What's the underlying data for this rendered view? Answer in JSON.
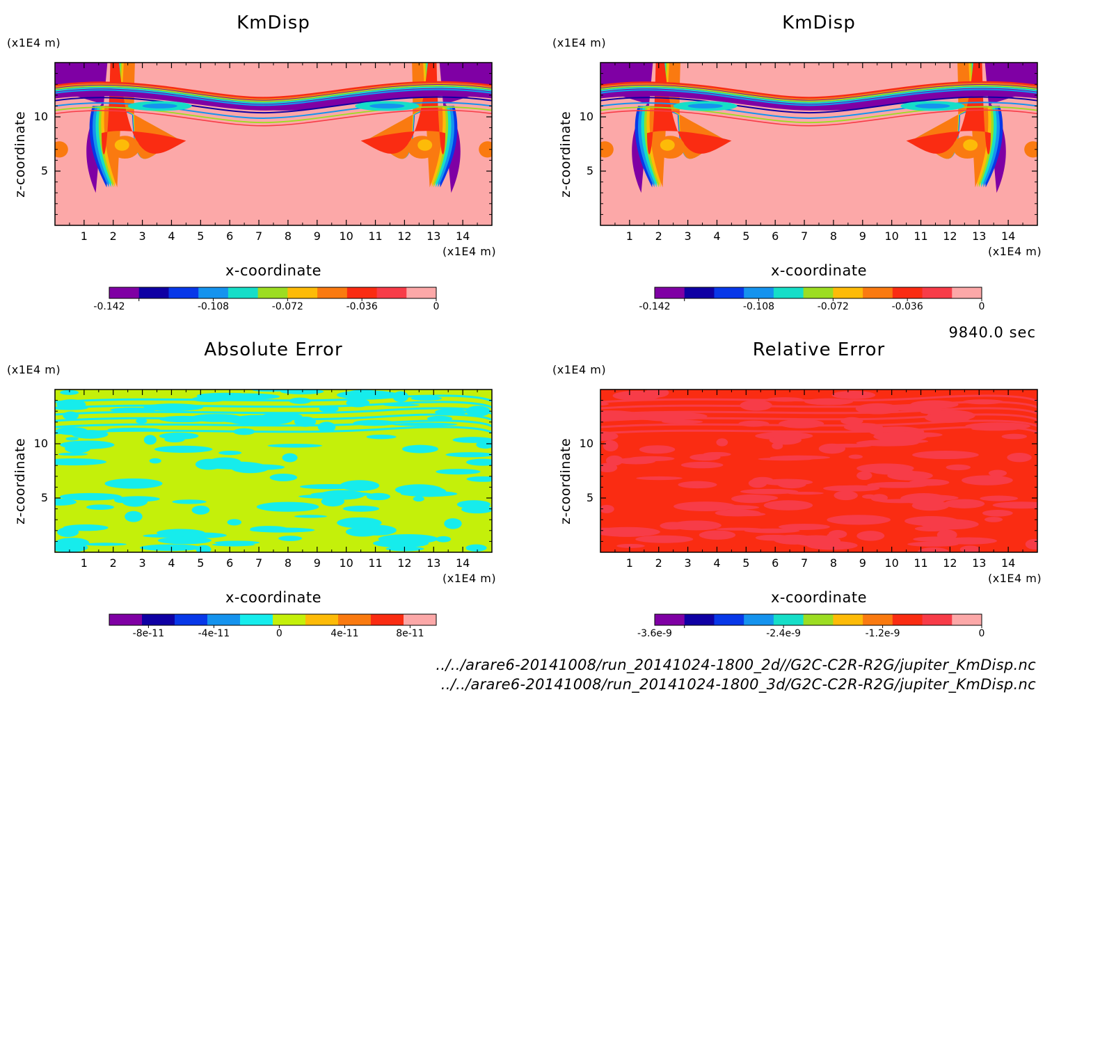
{
  "figure": {
    "timestamp": "9840.0 sec",
    "files": [
      "../../arare6-20141008/run_20141024-1800_2d//G2C-C2R-R2G/jupiter_KmDisp.nc",
      "../../arare6-20141008/run_20141024-1800_3d/G2C-C2R-R2G/jupiter_KmDisp.nc"
    ]
  },
  "chart_data": [
    {
      "type": "heatmap",
      "title": "KmDisp",
      "xlabel": "x-coordinate",
      "ylabel": "z-coordinate",
      "x_unit": "(x1E4 m)",
      "y_unit": "(x1E4 m)",
      "xlim": [
        0,
        15
      ],
      "ylim": [
        0,
        15
      ],
      "xticks": [
        "1",
        "2",
        "3",
        "4",
        "5",
        "6",
        "7",
        "8",
        "9",
        "10",
        "11",
        "12",
        "13",
        "14"
      ],
      "yticks": [
        "5",
        "10"
      ],
      "colorbar": {
        "colors": [
          "#7f00a4",
          "#0f00a3",
          "#0838e8",
          "#1593ee",
          "#16dec8",
          "#9cdd22",
          "#fdbb08",
          "#fa7a10",
          "#fa2c12",
          "#f73c48",
          "#fca8a8"
        ],
        "tick_labels": [
          "-0.142",
          "-0.108",
          "-0.072",
          "-0.036",
          "0"
        ]
      }
    },
    {
      "type": "heatmap",
      "title": "KmDisp",
      "xlabel": "x-coordinate",
      "ylabel": "z-coordinate",
      "x_unit": "(x1E4 m)",
      "y_unit": "(x1E4 m)",
      "xlim": [
        0,
        15
      ],
      "ylim": [
        0,
        15
      ],
      "xticks": [
        "1",
        "2",
        "3",
        "4",
        "5",
        "6",
        "7",
        "8",
        "9",
        "10",
        "11",
        "12",
        "13",
        "14"
      ],
      "yticks": [
        "5",
        "10"
      ],
      "colorbar": {
        "colors": [
          "#7f00a4",
          "#0f00a3",
          "#0838e8",
          "#1593ee",
          "#16dec8",
          "#9cdd22",
          "#fdbb08",
          "#fa7a10",
          "#fa2c12",
          "#f73c48",
          "#fca8a8"
        ],
        "tick_labels": [
          "-0.142",
          "-0.108",
          "-0.072",
          "-0.036",
          "0"
        ]
      }
    },
    {
      "type": "heatmap",
      "title": "Absolute Error",
      "xlabel": "x-coordinate",
      "ylabel": "z-coordinate",
      "x_unit": "(x1E4 m)",
      "y_unit": "(x1E4 m)",
      "xlim": [
        0,
        15
      ],
      "ylim": [
        0,
        15
      ],
      "xticks": [
        "1",
        "2",
        "3",
        "4",
        "5",
        "6",
        "7",
        "8",
        "9",
        "10",
        "11",
        "12",
        "13",
        "14"
      ],
      "yticks": [
        "5",
        "10"
      ],
      "colorbar": {
        "colors": [
          "#7f00a4",
          "#0f00a3",
          "#0838e8",
          "#1593ee",
          "#16ecec",
          "#c4f00a",
          "#fdbb08",
          "#fa7a10",
          "#fa2c12",
          "#fca8a8"
        ],
        "tick_labels": [
          "-8e-11",
          "-4e-11",
          "0",
          "4e-11",
          "8e-11"
        ]
      }
    },
    {
      "type": "heatmap",
      "title": "Relative Error",
      "xlabel": "x-coordinate",
      "ylabel": "z-coordinate",
      "x_unit": "(x1E4 m)",
      "y_unit": "(x1E4 m)",
      "xlim": [
        0,
        15
      ],
      "ylim": [
        0,
        15
      ],
      "xticks": [
        "1",
        "2",
        "3",
        "4",
        "5",
        "6",
        "7",
        "8",
        "9",
        "10",
        "11",
        "12",
        "13",
        "14"
      ],
      "yticks": [
        "5",
        "10"
      ],
      "colorbar": {
        "colors": [
          "#7f00a4",
          "#0f00a3",
          "#0838e8",
          "#1593ee",
          "#16dec8",
          "#9cdd22",
          "#fdbb08",
          "#fa7a10",
          "#fa2c12",
          "#f73c48",
          "#fca8a8"
        ],
        "tick_labels": [
          "-3.6e-9",
          "-2.4e-9",
          "-1.2e-9",
          "0"
        ]
      }
    }
  ]
}
